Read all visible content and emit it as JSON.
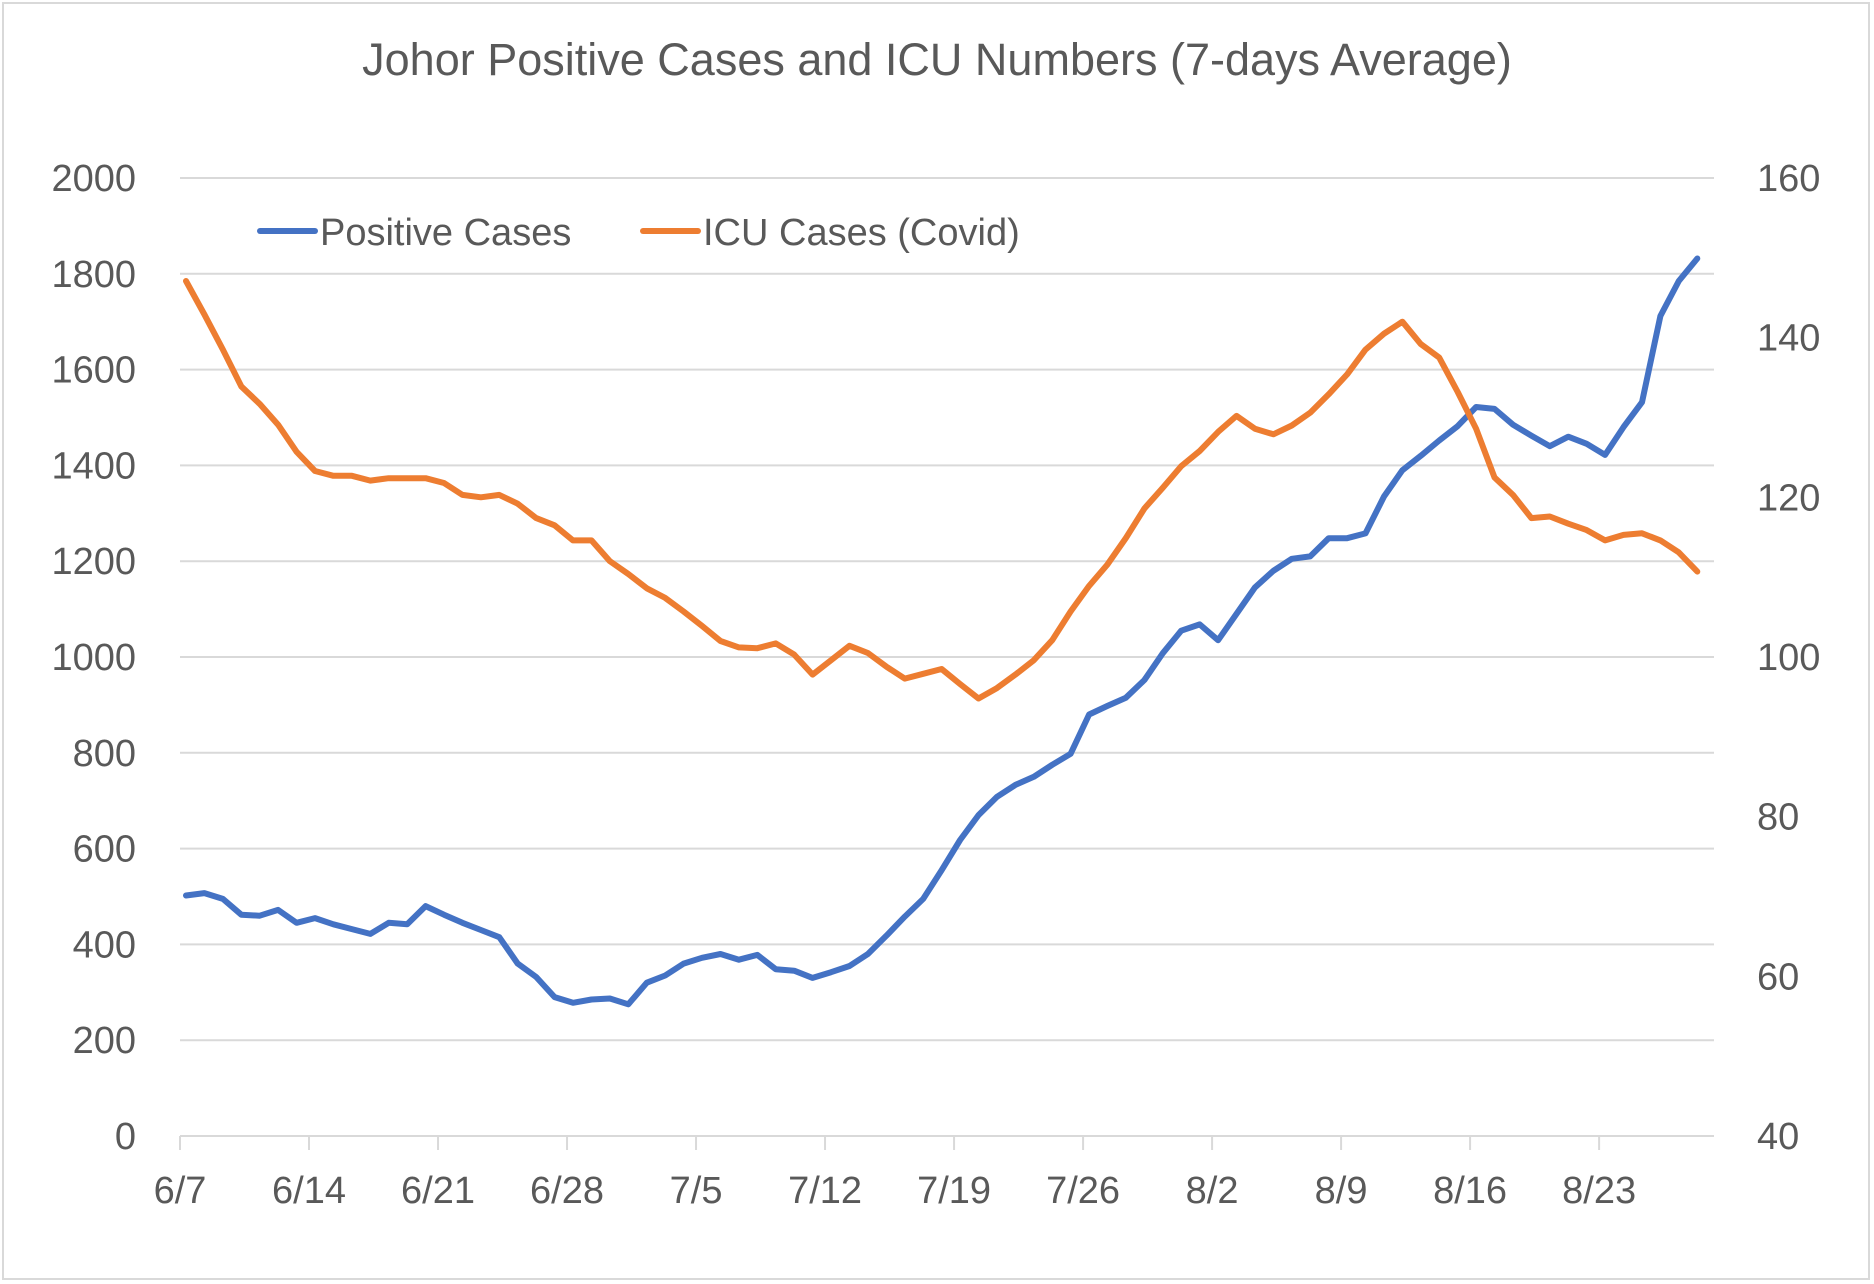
{
  "chart_data": {
    "type": "line",
    "title": "Johor Positive Cases and ICU Numbers (7-days Average)",
    "xlabel": "",
    "ylabel": "",
    "ylabel_right": "",
    "ylim": [
      0,
      2000
    ],
    "ylim_right": [
      40,
      160
    ],
    "yticks": [
      "0",
      "200",
      "400",
      "600",
      "800",
      "1000",
      "1200",
      "1400",
      "1600",
      "1800",
      "2000"
    ],
    "yticks_right": [
      "40",
      "60",
      "80",
      "100",
      "120",
      "140",
      "160"
    ],
    "xticks": [
      "6/7",
      "6/14",
      "6/21",
      "6/28",
      "7/5",
      "7/12",
      "7/19",
      "7/26",
      "8/2",
      "8/9",
      "8/16",
      "8/23"
    ],
    "grid": true,
    "legend_position": "top-left",
    "x_start": "6/7",
    "x_end": "8/28",
    "series": [
      {
        "name": "Positive Cases",
        "axis": "left",
        "color": "#4472C4",
        "values": [
          502,
          507,
          495,
          462,
          460,
          472,
          445,
          455,
          442,
          432,
          422,
          445,
          442,
          480,
          462,
          445,
          430,
          415,
          360,
          332,
          290,
          278,
          285,
          287,
          275,
          320,
          335,
          360,
          372,
          380,
          368,
          378,
          348,
          345,
          330,
          342,
          355,
          380,
          418,
          458,
          495,
          555,
          618,
          670,
          708,
          733,
          750,
          775,
          798,
          880,
          898,
          915,
          952,
          1008,
          1055,
          1068,
          1035,
          1090,
          1145,
          1180,
          1205,
          1210,
          1248,
          1248,
          1258,
          1335,
          1390,
          1420,
          1452,
          1482,
          1522,
          1518,
          1485,
          1462,
          1440,
          1460,
          1445,
          1422,
          1480,
          1532,
          1712,
          1785,
          1832
        ]
      },
      {
        "name": "ICU Cases (Covid)",
        "axis": "right",
        "color": "#ED7D31",
        "values": [
          147.1,
          142.9,
          138.5,
          133.9,
          131.7,
          129.1,
          125.7,
          123.3,
          122.7,
          122.7,
          122.1,
          122.4,
          122.4,
          122.4,
          121.8,
          120.3,
          120.0,
          120.3,
          119.2,
          117.4,
          116.5,
          114.6,
          114.6,
          112.0,
          110.4,
          108.6,
          107.4,
          105.7,
          103.9,
          102.0,
          101.2,
          101.1,
          101.7,
          100.3,
          97.8,
          99.6,
          101.4,
          100.5,
          98.8,
          97.3,
          97.9,
          98.5,
          96.6,
          94.8,
          96.1,
          97.8,
          99.6,
          102.1,
          105.7,
          108.9,
          111.6,
          114.9,
          118.6,
          121.2,
          123.9,
          125.8,
          128.2,
          130.2,
          128.6,
          127.9,
          129.0,
          130.6,
          132.9,
          135.4,
          138.5,
          140.5,
          142.0,
          139.2,
          137.5,
          133.2,
          128.6,
          122.5,
          120.3,
          117.4,
          117.6,
          116.7,
          115.9,
          114.6,
          115.3,
          115.5,
          114.6,
          113.1,
          110.7
        ]
      }
    ]
  }
}
